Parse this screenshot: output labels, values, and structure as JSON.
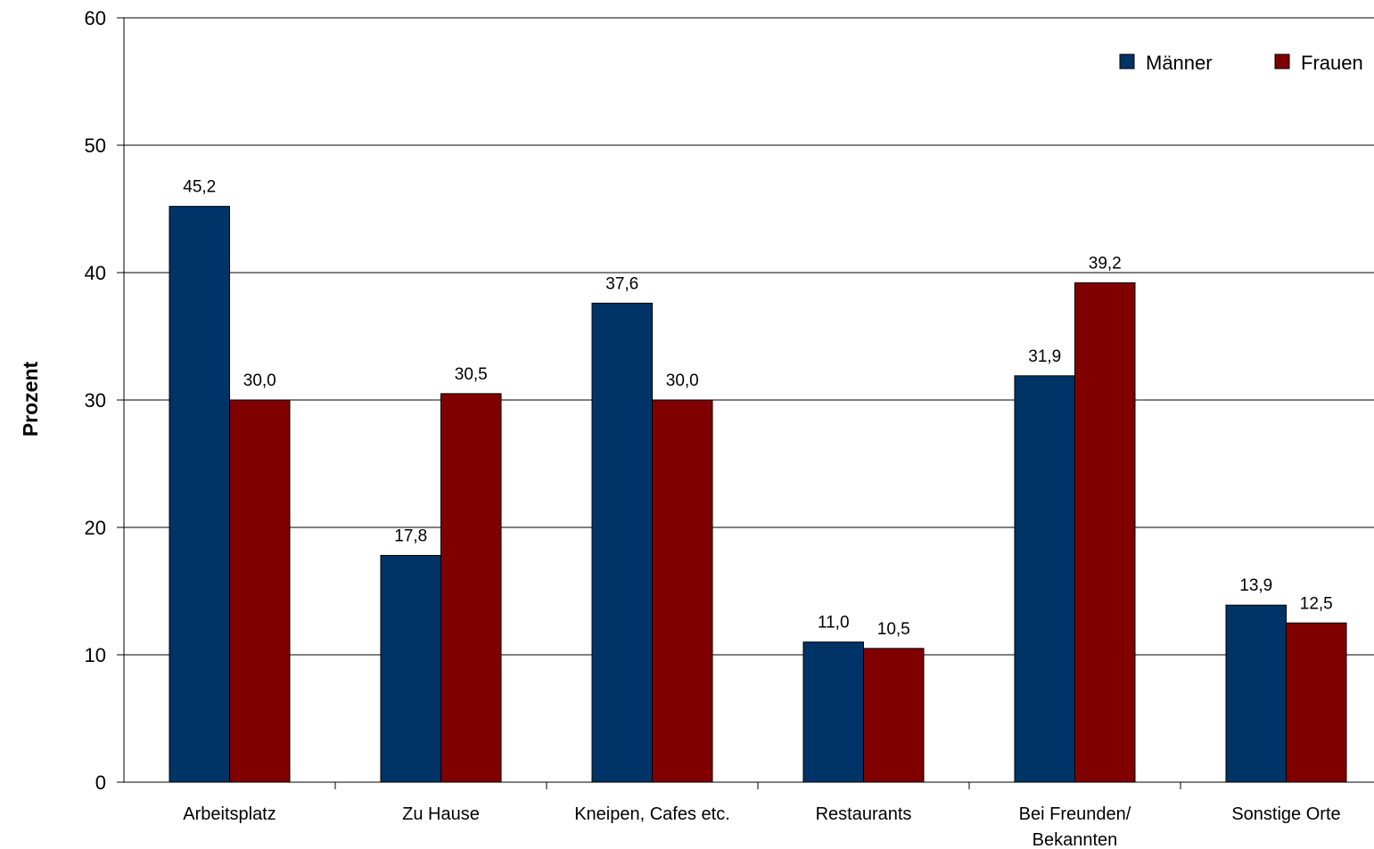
{
  "chart_data": {
    "type": "bar",
    "title": "",
    "xlabel": "",
    "ylabel": "Prozent",
    "ylim": [
      0,
      60
    ],
    "yticks": [
      0,
      10,
      20,
      30,
      40,
      50,
      60
    ],
    "grid": true,
    "legend_position": "top-right",
    "categories": [
      [
        "Arbeitsplatz"
      ],
      [
        "Zu Hause"
      ],
      [
        "Kneipen, Cafes etc."
      ],
      [
        "Restaurants"
      ],
      [
        "Bei Freunden/",
        "Bekannten"
      ],
      [
        "Sonstige Orte"
      ]
    ],
    "series": [
      {
        "name": "Männer",
        "color": "#003366",
        "values": [
          45.2,
          17.8,
          37.6,
          11.0,
          31.9,
          13.9
        ],
        "labels": [
          "45,2",
          "17,8",
          "37,6",
          "11,0",
          "31,9",
          "13,9"
        ]
      },
      {
        "name": "Frauen",
        "color": "#800000",
        "values": [
          30.0,
          30.5,
          30.0,
          10.5,
          39.2,
          12.5
        ],
        "labels": [
          "30,0",
          "30,5",
          "30,0",
          "10,5",
          "39,2",
          "12,5"
        ]
      }
    ]
  }
}
